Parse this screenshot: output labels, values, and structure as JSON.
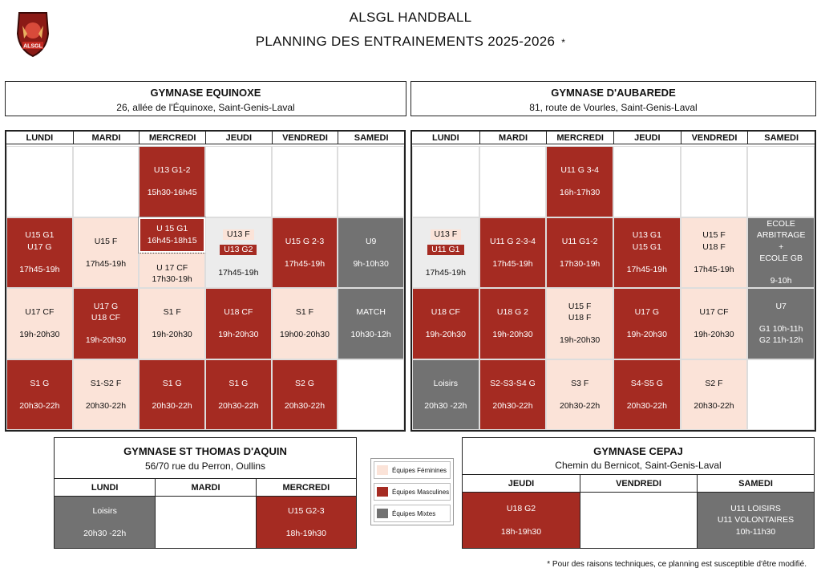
{
  "header": {
    "club": "ALSGL HANDBALL",
    "subtitle": "PLANNING DES ENTRAINEMENTS 2025-2026",
    "star": "*",
    "logo_text": "ALSGL"
  },
  "days6": [
    "LUNDI",
    "MARDI",
    "MERCREDI",
    "JEUDI",
    "VENDREDI",
    "SAMEDI"
  ],
  "gym1": {
    "name": "GYMNASE EQUINOXE",
    "address": "26, allée de l'Équinoxe, Saint-Genis-Laval",
    "rows": [
      [
        {
          "k": "emp"
        },
        {
          "k": "emp"
        },
        {
          "k": "masc",
          "t": "U13 G1-2",
          "h": "15h30-16h45"
        },
        {
          "k": "emp"
        },
        {
          "k": "emp"
        },
        {
          "k": "emp"
        }
      ],
      [
        {
          "k": "masc",
          "t": "U15 G1\nU17 G",
          "h": "17h45-19h"
        },
        {
          "k": "fem",
          "t": "U15 F",
          "h": "17h45-19h"
        },
        {
          "k": "split",
          "a": {
            "t": "U 15 G1\n16h45-18h15"
          },
          "b": {
            "t": "U 17 CF\n17h30-19h"
          }
        },
        {
          "k": "tags",
          "tags": [
            {
              "k": "fem",
              "t": "U13 F"
            },
            {
              "k": "masc",
              "t": "U13 G2"
            }
          ],
          "h": "17h45-19h"
        },
        {
          "k": "masc",
          "t": "U15 G 2-3",
          "h": "17h45-19h"
        },
        {
          "k": "mix",
          "t": "U9",
          "h": "9h-10h30"
        }
      ],
      [
        {
          "k": "fem",
          "t": "U17 CF",
          "h": "19h-20h30"
        },
        {
          "k": "masc",
          "t": "U17 G\nU18 CF",
          "h": "19h-20h30"
        },
        {
          "k": "fem",
          "t": "S1 F",
          "h": "19h-20h30"
        },
        {
          "k": "masc",
          "t": "U18 CF",
          "h": "19h-20h30"
        },
        {
          "k": "fem",
          "t": "S1 F",
          "h": "19h00-20h30"
        },
        {
          "k": "mix",
          "t": "MATCH",
          "h": "10h30-12h"
        }
      ],
      [
        {
          "k": "masc",
          "t": "S1 G",
          "h": "20h30-22h"
        },
        {
          "k": "fem",
          "t": "S1-S2 F",
          "h": "20h30-22h"
        },
        {
          "k": "masc",
          "t": "S1 G",
          "h": "20h30-22h"
        },
        {
          "k": "masc",
          "t": "S1 G",
          "h": "20h30-22h"
        },
        {
          "k": "masc",
          "t": "S2 G",
          "h": "20h30-22h"
        },
        {
          "k": "emp"
        }
      ]
    ]
  },
  "gym2": {
    "name": "GYMNASE D'AUBAREDE",
    "address": "81, route de Vourles, Saint-Genis-Laval",
    "rows": [
      [
        {
          "k": "emp"
        },
        {
          "k": "emp"
        },
        {
          "k": "masc",
          "t": "U11 G 3-4",
          "h": "16h-17h30"
        },
        {
          "k": "emp"
        },
        {
          "k": "emp"
        },
        {
          "k": "emp"
        }
      ],
      [
        {
          "k": "tags",
          "tags": [
            {
              "k": "fem",
              "t": "U13 F"
            },
            {
              "k": "masc",
              "t": "U11 G1"
            }
          ],
          "h": "17h45-19h"
        },
        {
          "k": "masc",
          "t": "U11 G 2-3-4",
          "h": "17h45-19h"
        },
        {
          "k": "masc",
          "t": "U11 G1-2",
          "h": "17h30-19h"
        },
        {
          "k": "masc",
          "t": "U13 G1\nU15 G1",
          "h": "17h45-19h"
        },
        {
          "k": "fem",
          "t": "U15 F\nU18 F",
          "h": "17h45-19h"
        },
        {
          "k": "mix",
          "t": "ECOLE\nARBITRAGE\n+\nECOLE GB",
          "h": "9-10h"
        }
      ],
      [
        {
          "k": "masc",
          "t": "U18 CF",
          "h": "19h-20h30"
        },
        {
          "k": "masc",
          "t": "U18 G 2",
          "h": "19h-20h30"
        },
        {
          "k": "fem",
          "t": "U15 F\nU18 F",
          "h": "19h-20h30"
        },
        {
          "k": "masc",
          "t": "U17 G",
          "h": "19h-20h30"
        },
        {
          "k": "fem",
          "t": "U17 CF",
          "h": "19h-20h30"
        },
        {
          "k": "mix",
          "t": "U7",
          "h": "G1 10h-11h\nG2 11h-12h"
        }
      ],
      [
        {
          "k": "mix",
          "t": "Loisirs",
          "h": "20h30 -22h"
        },
        {
          "k": "masc",
          "t": "S2-S3-S4 G",
          "h": "20h30-22h"
        },
        {
          "k": "fem",
          "t": "S3 F",
          "h": "20h30-22h"
        },
        {
          "k": "masc",
          "t": "S4-S5 G",
          "h": "20h30-22h"
        },
        {
          "k": "fem",
          "t": "S2 F",
          "h": "20h30-22h"
        },
        {
          "k": "emp"
        }
      ]
    ]
  },
  "gym3": {
    "name": "GYMNASE ST THOMAS D'AQUIN",
    "address": "56/70 rue du Perron, Oullins",
    "days": [
      "LUNDI",
      "MARDI",
      "MERCREDI"
    ],
    "cells": [
      {
        "k": "mix",
        "t": "Loisirs",
        "h": "20h30 -22h"
      },
      {
        "k": "emp"
      },
      {
        "k": "masc",
        "t": "U15 G2-3",
        "h": "18h-19h30"
      }
    ]
  },
  "gym4": {
    "name": "GYMNASE CEPAJ",
    "address": "Chemin du Bernicot, Saint-Genis-Laval",
    "days": [
      "JEUDI",
      "VENDREDI",
      "SAMEDI"
    ],
    "cells": [
      {
        "k": "masc",
        "t": "U18 G2",
        "h": "18h-19h30"
      },
      {
        "k": "emp"
      },
      {
        "k": "mix",
        "t": "U11 LOISIRS\nU11 VOLONTAIRES\n10h-11h30"
      }
    ]
  },
  "legend": [
    {
      "k": "fem",
      "label": "Équipes Féminines",
      "color": "#fbe3d8"
    },
    {
      "k": "masc",
      "label": "Équipes Masculines",
      "color": "#a52b22"
    },
    {
      "k": "mix",
      "label": "Équipes Mixtes",
      "color": "#727272"
    }
  ],
  "footnote": "* Pour des raisons techniques, ce planning est susceptible d'être modifié."
}
